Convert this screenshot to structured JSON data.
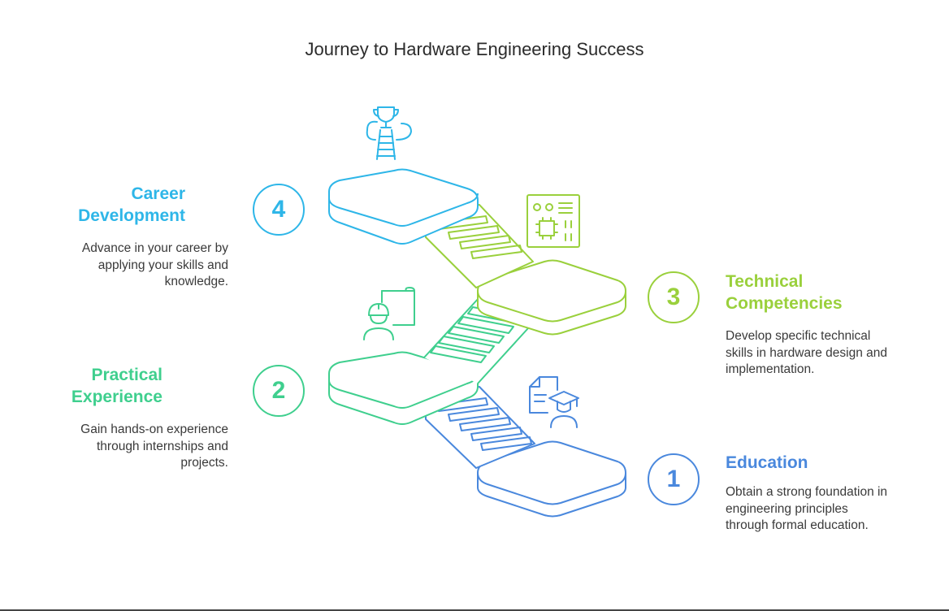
{
  "title": "Journey to Hardware Engineering Success",
  "colors": {
    "education": "#4a88dd",
    "practical": "#3fcf8e",
    "technical": "#9ad03c",
    "career": "#2eb6e8"
  },
  "stages": [
    {
      "number": "1",
      "title": "Education",
      "description": "Obtain a strong foundation in engineering principles through formal education.",
      "icon": "student-graduate-icon"
    },
    {
      "number": "2",
      "title": "Practical Experience",
      "description": "Gain hands-on experience through internships and projects.",
      "icon": "engineer-blueprint-icon"
    },
    {
      "number": "3",
      "title": "Technical Competencies",
      "description": "Develop specific technical skills in hardware design and implementation.",
      "icon": "circuit-chip-icon"
    },
    {
      "number": "4",
      "title": "Career Development",
      "description": "Advance in your career by applying your skills and knowledge.",
      "icon": "trophy-ladder-icon"
    }
  ]
}
